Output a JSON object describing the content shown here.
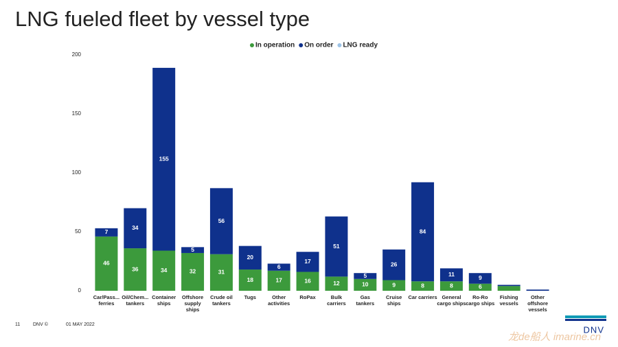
{
  "chart_data": {
    "type": "stacked_bar",
    "title": "LNG fueled fleet by vessel type",
    "categories": [
      "Car/Pass...\nferries",
      "Oil/Chem...\ntankers",
      "Container\nships",
      "Offshore\nsupply\nships",
      "Crude oil\ntankers",
      "Tugs",
      "Other\nactivities",
      "RoPax",
      "Bulk\ncarriers",
      "Gas\ntankers",
      "Cruise\nships",
      "Car carriers",
      "General\ncargo ships",
      "Ro-Ro\ncargo ships",
      "Fishing\nvessels",
      "Other\noffshore\nvessels"
    ],
    "series": [
      {
        "name": "In operation",
        "color": "#3c9a3c",
        "values": [
          46,
          36,
          34,
          32,
          31,
          18,
          17,
          16,
          12,
          10,
          9,
          8,
          8,
          6,
          4,
          0
        ]
      },
      {
        "name": "On order",
        "color": "#0f318c",
        "values": [
          7,
          34,
          155,
          5,
          56,
          20,
          6,
          17,
          51,
          5,
          26,
          84,
          11,
          9,
          1,
          1
        ]
      },
      {
        "name": "LNG ready",
        "color": "#9dc3e6",
        "values": [
          0,
          0,
          0,
          0,
          0,
          0,
          0,
          0,
          0,
          0,
          0,
          0,
          0,
          0,
          0,
          0
        ]
      }
    ],
    "ylim": [
      0,
      200
    ],
    "yticks": [
      0,
      50,
      100,
      150,
      200
    ],
    "legend": "top",
    "grid": false
  },
  "footer": {
    "page": "11",
    "brand": "DNV ©",
    "date": "01 MAY 2022",
    "logo": "DNV",
    "watermark": "龙de船人 imarine.cn"
  }
}
